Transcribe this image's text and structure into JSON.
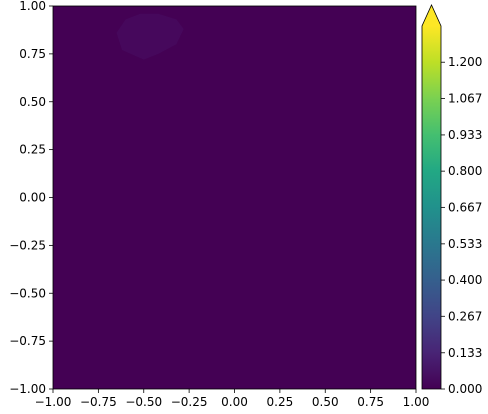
{
  "chart_data": {
    "type": "heatmap",
    "title": "",
    "xlabel": "",
    "ylabel": "",
    "xlim": [
      -1.0,
      1.0
    ],
    "ylim": [
      -1.0,
      1.0
    ],
    "x_ticks": [
      -1.0,
      -0.75,
      -0.5,
      -0.25,
      0.0,
      0.25,
      0.5,
      0.75,
      1.0
    ],
    "x_tick_labels": [
      "−1.00",
      "−0.75",
      "−0.50",
      "−0.25",
      "0.00",
      "0.25",
      "0.50",
      "0.75",
      "1.00"
    ],
    "y_ticks": [
      1.0,
      0.75,
      0.5,
      0.25,
      0.0,
      -0.25,
      -0.5,
      -0.75,
      -1.0
    ],
    "y_tick_labels": [
      "1.00",
      "0.75",
      "0.50",
      "0.25",
      "0.00",
      "−0.25",
      "−0.50",
      "−0.75",
      "−1.00"
    ],
    "grid": false,
    "colormap": "viridis",
    "background_color": "#440154",
    "colorbar": {
      "ticks": [
        0.0,
        0.133,
        0.267,
        0.4,
        0.533,
        0.667,
        0.8,
        0.933,
        1.067,
        1.2
      ],
      "tick_labels": [
        "0.000",
        "0.133",
        "0.267",
        "0.400",
        "0.533",
        "0.667",
        "0.800",
        "0.933",
        "1.067",
        "1.200"
      ],
      "range": [
        0.0,
        1.333
      ],
      "extend": "max"
    },
    "features": [
      {
        "name": "faint-blob",
        "level": 0.01,
        "color": "#46085c",
        "polygon_x": [
          -0.6,
          -0.52,
          -0.42,
          -0.32,
          -0.28,
          -0.32,
          -0.42,
          -0.5,
          -0.62,
          -0.65,
          -0.6
        ],
        "polygon_y": [
          0.93,
          0.96,
          0.96,
          0.93,
          0.88,
          0.8,
          0.75,
          0.72,
          0.77,
          0.86,
          0.93
        ]
      }
    ]
  }
}
